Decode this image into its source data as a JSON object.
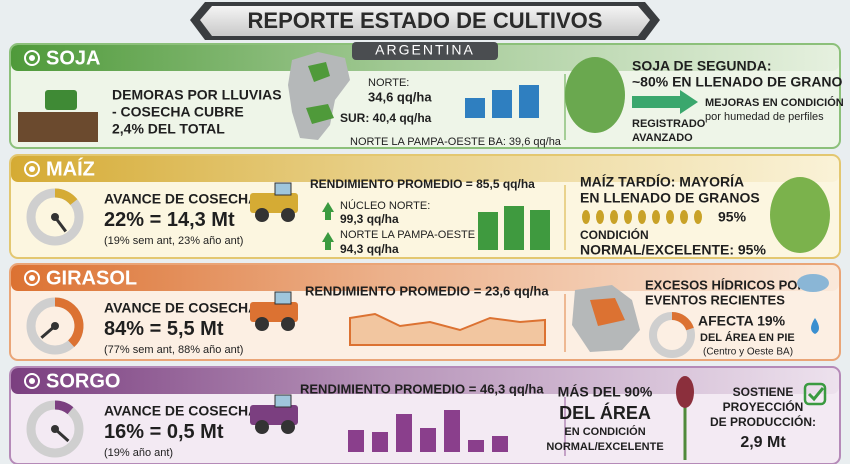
{
  "header": {
    "title": "REPORTE ESTADO DE CULTIVOS",
    "subtitle": "ARGENTINA"
  },
  "sections": [
    {
      "name": "SOJA",
      "left": [
        "DEMORAS POR LLUVIAS",
        "- COSECHA CUBRE",
        "2,4% DEL TOTAL"
      ],
      "middle": [
        "NORTE:",
        "34,6 qq/ha",
        "SUR: 40,4 qq/ha",
        "NORTE LA PAMPA-OESTE BA: 39,6 qq/ha"
      ],
      "right": [
        "SOJA DE SEGUNDA:",
        "~80% EN LLENADO DE GRANO",
        "MEJORAS EN CONDICIÓN",
        "por humedad de perfiles",
        "REGISTRADO",
        "AVANZADO"
      ]
    },
    {
      "name": "MAÍZ",
      "left": [
        "AVANCE DE COSECHA:",
        "22% = 14,3 Mt",
        "(19% sem ant, 23% año ant)"
      ],
      "middle": [
        "RENDIMIENTO PROMEDIO = 85,5 qq/ha",
        "NÚCLEO NORTE:",
        "99,3 qq/ha",
        "NORTE LA PAMPA-OESTE BA:",
        "94,3 qq/ha"
      ],
      "right": [
        "MAÍZ TARDÍO: MAYORÍA",
        "EN LLENADO DE GRANOS",
        "95%",
        "CONDICIÓN",
        "NORMAL/EXCELENTE: 95%"
      ]
    },
    {
      "name": "GIRASOL",
      "left": [
        "AVANCE DE COSECHA:",
        "84% = 5,5 Mt",
        "(77% sem ant, 88% año ant)"
      ],
      "middle": [
        "RENDIMIENTO PROMEDIO = 23,6 qq/ha"
      ],
      "right": [
        "EXCESOS HÍDRICOS POR",
        "EVENTOS RECIENTES",
        "AFECTA 19%",
        "DEL ÁREA EN PIE",
        "(Centro y Oeste BA)"
      ]
    },
    {
      "name": "SORGO",
      "left": [
        "AVANCE DE COSECHA:",
        "16% = 0,5 Mt",
        "(19% año ant)"
      ],
      "middle": [
        "RENDIMIENTO PROMEDIO = 46,3 qq/ha"
      ],
      "right": [
        "MÁS DEL 90%",
        "DEL ÁREA",
        "EN CONDICIÓN",
        "NORMAL/EXCELENTE",
        "SOSTIENE",
        "PROYECCIÓN",
        "DE PRODUCCIÓN:",
        "2,9 Mt"
      ]
    }
  ]
}
